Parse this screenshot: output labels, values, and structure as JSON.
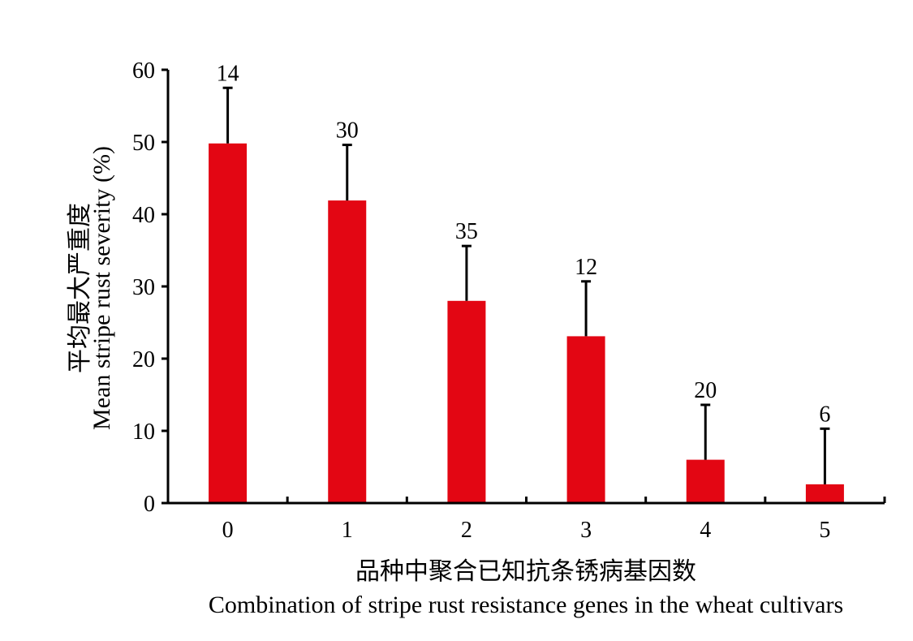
{
  "chart_data": {
    "type": "bar",
    "categories": [
      "0",
      "1",
      "2",
      "3",
      "4",
      "5"
    ],
    "values": [
      49.8,
      41.9,
      28.0,
      23.1,
      6.0,
      2.6
    ],
    "error_upper": [
      57.5,
      49.6,
      35.6,
      30.7,
      13.6,
      10.3
    ],
    "bar_labels": [
      "14",
      "30",
      "35",
      "12",
      "20",
      "6"
    ],
    "ylim": [
      0,
      60
    ],
    "yticks": [
      "0",
      "10",
      "20",
      "30",
      "40",
      "50",
      "60"
    ],
    "ylabel_cn": "平均最大严重度",
    "ylabel_en": "Mean stripe rust severity (%)",
    "xlabel_cn": "品种中聚合已知抗条锈病基因数",
    "xlabel_en": "Combination of stripe rust resistance genes in the wheat cultivars",
    "bar_color": "#e30613",
    "grid": false,
    "legend": "none"
  }
}
